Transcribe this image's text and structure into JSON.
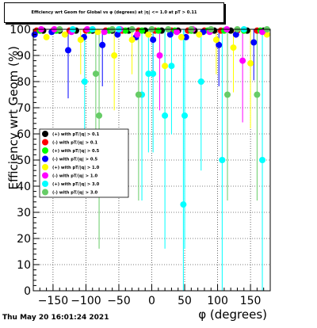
{
  "title": "Efficiency wrt Geom for Global vs φ (degrees) at |η| <= 1.0 at pT > 0.11",
  "timestamp": "Thu May 20 16:01:24 2021",
  "chart_data": {
    "type": "scatter",
    "xlabel": "φ (degrees)",
    "ylabel": "Efficiency wrt Geom (%)",
    "xlim": [
      -180,
      180
    ],
    "ylim": [
      0,
      100
    ],
    "x_ticks": [
      -150,
      -100,
      -50,
      0,
      50,
      100,
      150
    ],
    "y_ticks": [
      0,
      10,
      20,
      30,
      40,
      50,
      60,
      70,
      80,
      90,
      100
    ],
    "grid": true,
    "legend_position": "left-middle",
    "series": [
      {
        "name": "(+) with pT/|q| > 0.1",
        "color": "#000000",
        "points": [
          [
            -165,
            99.5
          ],
          [
            -140,
            99.5
          ],
          [
            -115,
            99.5
          ],
          [
            -90,
            99.5
          ],
          [
            -60,
            99.5
          ],
          [
            -35,
            99.5
          ],
          [
            -10,
            99.5
          ],
          [
            15,
            99.5
          ],
          [
            40,
            99.5
          ],
          [
            65,
            99.5
          ],
          [
            95,
            99.5
          ],
          [
            120,
            99.5
          ],
          [
            145,
            99.5
          ],
          [
            170,
            99.5
          ]
        ]
      },
      {
        "name": "(-) with pT/|q| > 0.1",
        "color": "#ff0000",
        "points": [
          [
            -175,
            99.5
          ],
          [
            -150,
            99.5
          ],
          [
            -125,
            99.5
          ],
          [
            -100,
            99.5
          ],
          [
            -70,
            99.5
          ],
          [
            -45,
            99.5
          ],
          [
            -20,
            99.5
          ],
          [
            5,
            99.5
          ],
          [
            30,
            99.5
          ],
          [
            55,
            99.5
          ],
          [
            80,
            99.5
          ],
          [
            105,
            99.5
          ],
          [
            130,
            99.5
          ],
          [
            160,
            99.5
          ]
        ]
      },
      {
        "name": "(+) with pT/|q| > 0.5",
        "color": "#00ff00",
        "points": [
          [
            -170,
            99.5
          ],
          [
            -145,
            99.5
          ],
          [
            -120,
            99.5
          ],
          [
            -95,
            99.5
          ],
          [
            -65,
            99.5
          ],
          [
            -40,
            99.5
          ],
          [
            -15,
            99.5
          ],
          [
            10,
            99.5
          ],
          [
            35,
            99.5
          ],
          [
            60,
            99.5
          ],
          [
            85,
            99.5
          ],
          [
            110,
            99.5
          ],
          [
            140,
            99.5
          ],
          [
            165,
            99.5
          ]
        ]
      },
      {
        "name": "(-) with pT/|q| > 0.5",
        "color": "#0000ff",
        "points": [
          [
            -178,
            98
          ],
          [
            -152,
            99
          ],
          [
            -127,
            92
          ],
          [
            -103,
            97
          ],
          [
            -75,
            94
          ],
          [
            -52,
            98
          ],
          [
            -24,
            97
          ],
          [
            2,
            96
          ],
          [
            28,
            98
          ],
          [
            52,
            97
          ],
          [
            78,
            99
          ],
          [
            102,
            94
          ],
          [
            128,
            98
          ],
          [
            155,
            95
          ]
        ]
      },
      {
        "name": "(+) with pT/|q| > 1.0",
        "color": "#ffff00",
        "points": [
          [
            -160,
            97
          ],
          [
            -132,
            98
          ],
          [
            -108,
            96
          ],
          [
            -82,
            99
          ],
          [
            -57,
            90
          ],
          [
            -30,
            96
          ],
          [
            -5,
            98
          ],
          [
            20,
            86
          ],
          [
            45,
            97
          ],
          [
            72,
            98
          ],
          [
            98,
            96
          ],
          [
            124,
            93
          ],
          [
            150,
            87
          ],
          [
            175,
            98
          ]
        ]
      },
      {
        "name": "(-) with pT/|q| > 1.0",
        "color": "#ff00ff",
        "points": [
          [
            -168,
            100
          ],
          [
            -148,
            100
          ],
          [
            -122,
            99
          ],
          [
            -98,
            100
          ],
          [
            -72,
            99
          ],
          [
            -48,
            100
          ],
          [
            -22,
            98
          ],
          [
            12,
            90
          ],
          [
            38,
            99
          ],
          [
            62,
            100
          ],
          [
            88,
            99
          ],
          [
            114,
            100
          ],
          [
            138,
            88
          ],
          [
            168,
            99
          ]
        ]
      },
      {
        "name": "(+) with pT/|q| > 3.0",
        "color": "#00ffff",
        "points": [
          [
            -102,
            80
          ],
          [
            -15,
            75
          ],
          [
            -5,
            83
          ],
          [
            2,
            83
          ],
          [
            20,
            67
          ],
          [
            30,
            86
          ],
          [
            48,
            33
          ],
          [
            50,
            67
          ],
          [
            75,
            80
          ],
          [
            107,
            50
          ],
          [
            168,
            50
          ],
          [
            -120,
            100
          ],
          [
            -90,
            100
          ],
          [
            -50,
            100
          ],
          [
            140,
            100
          ]
        ]
      },
      {
        "name": "(-) with pT/|q| > 3.0",
        "color": "#66cc66",
        "points": [
          [
            -85,
            83
          ],
          [
            -80,
            67
          ],
          [
            -20,
            75
          ],
          [
            115,
            75
          ],
          [
            160,
            75
          ],
          [
            -140,
            100
          ],
          [
            -60,
            100
          ],
          [
            -30,
            100
          ],
          [
            0,
            100
          ],
          [
            25,
            100
          ],
          [
            60,
            100
          ],
          [
            90,
            100
          ],
          [
            130,
            100
          ],
          [
            175,
            100
          ]
        ]
      }
    ]
  }
}
